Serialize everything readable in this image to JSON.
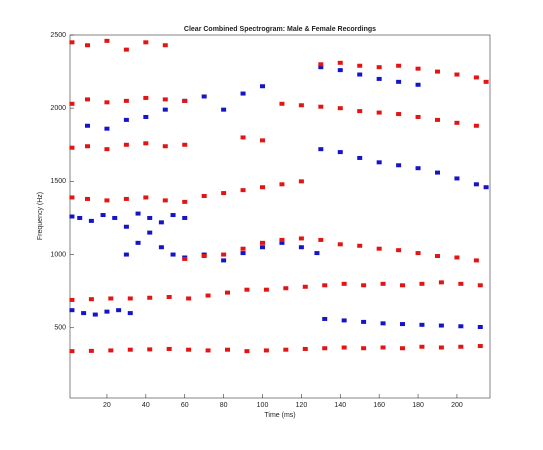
{
  "chart_data": {
    "type": "scatter",
    "title": "Clear Combined Spectrogram: Male & Female Recordings",
    "xlabel": "Time (ms)",
    "ylabel": "Frequency (Hz)",
    "xlim": [
      1,
      217
    ],
    "ylim": [
      20,
      2500
    ],
    "xticks": [
      20,
      40,
      60,
      80,
      100,
      120,
      140,
      160,
      180,
      200
    ],
    "yticks": [
      500,
      1000,
      1500,
      2000,
      2500
    ],
    "series": [
      {
        "color": "#e31414",
        "x": [
          2,
          12,
          22,
          32,
          42,
          52,
          62,
          72,
          82,
          92,
          102,
          112,
          122,
          132,
          142,
          152,
          162,
          172,
          182,
          192,
          202,
          212
        ],
        "y": [
          340,
          342,
          345,
          350,
          352,
          355,
          350,
          345,
          350,
          340,
          345,
          350,
          355,
          360,
          365,
          360,
          365,
          360,
          370,
          365,
          370,
          375
        ]
      },
      {
        "color": "#e31414",
        "x": [
          2,
          12,
          22,
          32,
          42,
          52,
          62,
          72,
          82,
          92,
          102,
          112,
          122,
          132,
          142,
          152,
          162,
          172,
          182,
          192,
          202,
          212
        ],
        "y": [
          690,
          695,
          700,
          700,
          705,
          710,
          700,
          720,
          740,
          760,
          760,
          770,
          780,
          790,
          800,
          790,
          800,
          790,
          800,
          810,
          800,
          790
        ]
      },
      {
        "color": "#1414c8",
        "x": [
          2,
          8,
          14,
          20,
          26,
          32
        ],
        "y": [
          620,
          600,
          590,
          610,
          620,
          600
        ]
      },
      {
        "color": "#1414c8",
        "x": [
          132,
          142,
          152,
          162,
          172,
          182,
          192,
          202,
          212
        ],
        "y": [
          560,
          550,
          540,
          530,
          525,
          520,
          515,
          510,
          505
        ]
      },
      {
        "color": "#1414c8",
        "x": [
          30,
          36,
          42,
          48,
          54,
          60,
          70,
          80,
          90,
          100,
          110,
          120,
          128
        ],
        "y": [
          1000,
          1080,
          1150,
          1050,
          1000,
          980,
          1000,
          960,
          1010,
          1050,
          1080,
          1050,
          1010
        ]
      },
      {
        "color": "#e31414",
        "x": [
          60,
          70,
          80,
          90,
          100,
          110,
          120,
          130,
          140,
          150,
          160,
          170,
          180,
          190,
          200,
          210
        ],
        "y": [
          970,
          990,
          1000,
          1040,
          1080,
          1100,
          1110,
          1100,
          1070,
          1060,
          1040,
          1030,
          1010,
          990,
          980,
          960
        ]
      },
      {
        "color": "#1414c8",
        "x": [
          2,
          6,
          12,
          18,
          24,
          30,
          36,
          42,
          48,
          54,
          60
        ],
        "y": [
          1260,
          1250,
          1230,
          1270,
          1250,
          1190,
          1280,
          1250,
          1220,
          1270,
          1250
        ]
      },
      {
        "color": "#e31414",
        "x": [
          2,
          10,
          20,
          30,
          40,
          50,
          60,
          70,
          80,
          90,
          100,
          110,
          120
        ],
        "y": [
          1390,
          1380,
          1370,
          1380,
          1390,
          1370,
          1360,
          1400,
          1420,
          1440,
          1460,
          1480,
          1500
        ]
      },
      {
        "color": "#1414c8",
        "x": [
          130,
          140,
          150,
          160,
          170,
          180,
          190,
          200,
          210,
          215
        ],
        "y": [
          1720,
          1700,
          1660,
          1630,
          1610,
          1590,
          1560,
          1520,
          1480,
          1460
        ]
      },
      {
        "color": "#e31414",
        "x": [
          2,
          10,
          20,
          30,
          40,
          50,
          60,
          90,
          100
        ],
        "y": [
          1730,
          1740,
          1720,
          1750,
          1760,
          1740,
          1750,
          1800,
          1780
        ]
      },
      {
        "color": "#1414c8",
        "x": [
          10,
          20,
          30,
          40,
          50,
          60,
          70,
          80,
          90,
          100
        ],
        "y": [
          1880,
          1860,
          1920,
          1940,
          1990,
          2050,
          2080,
          1990,
          2100,
          2150
        ]
      },
      {
        "color": "#e31414",
        "x": [
          2,
          10,
          20,
          30,
          40,
          50,
          60,
          110,
          120,
          130,
          140,
          150,
          160,
          170,
          180,
          190,
          200,
          210
        ],
        "y": [
          2030,
          2060,
          2040,
          2050,
          2070,
          2060,
          2050,
          2030,
          2020,
          2010,
          2000,
          1980,
          1970,
          1960,
          1940,
          1920,
          1900,
          1880
        ]
      },
      {
        "color": "#1414c8",
        "x": [
          130,
          140,
          150,
          160,
          170,
          180
        ],
        "y": [
          2280,
          2260,
          2230,
          2200,
          2180,
          2160
        ]
      },
      {
        "color": "#e31414",
        "x": [
          2,
          10,
          20,
          30,
          40,
          50,
          130,
          140,
          150,
          160,
          170,
          180,
          190,
          200,
          210,
          215
        ],
        "y": [
          2450,
          2430,
          2460,
          2400,
          2450,
          2430,
          2300,
          2310,
          2290,
          2280,
          2290,
          2270,
          2250,
          2230,
          2210,
          2180
        ]
      }
    ]
  }
}
